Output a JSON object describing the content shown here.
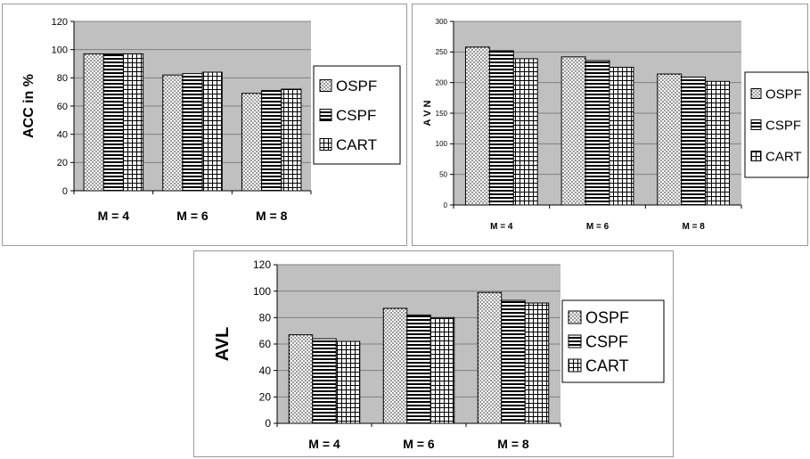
{
  "chart_data": [
    {
      "type": "bar",
      "ylabel": "ACC in %",
      "xlabel": "",
      "categories": [
        "M = 4",
        "M = 6",
        "M = 8"
      ],
      "ylim": [
        0,
        120
      ],
      "yticks": [
        0,
        20,
        40,
        60,
        80,
        100,
        120
      ],
      "grid": true,
      "legend": "right",
      "series": [
        {
          "name": "OSPF",
          "pattern": "dots",
          "values": [
            97,
            82,
            69
          ]
        },
        {
          "name": "CSPF",
          "pattern": "hstripes",
          "values": [
            97,
            83,
            71
          ]
        },
        {
          "name": "CART",
          "pattern": "grid",
          "values": [
            97,
            84,
            72
          ]
        }
      ]
    },
    {
      "type": "bar",
      "ylabel": "A V N",
      "xlabel": "",
      "categories": [
        "M = 4",
        "M = 6",
        "M = 8"
      ],
      "ylim": [
        0,
        300
      ],
      "yticks": [
        0,
        50,
        100,
        150,
        200,
        250,
        300
      ],
      "grid": true,
      "legend": "right",
      "series": [
        {
          "name": "OSPF",
          "pattern": "dots",
          "values": [
            258,
            242,
            214
          ]
        },
        {
          "name": "CSPF",
          "pattern": "hstripes",
          "values": [
            252,
            236,
            209
          ]
        },
        {
          "name": "CART",
          "pattern": "grid",
          "values": [
            239,
            225,
            202
          ]
        }
      ]
    },
    {
      "type": "bar",
      "ylabel": "AVL",
      "xlabel": "",
      "categories": [
        "M = 4",
        "M = 6",
        "M = 8"
      ],
      "ylim": [
        0,
        120
      ],
      "yticks": [
        0,
        20,
        40,
        60,
        80,
        100,
        120
      ],
      "grid": true,
      "legend": "right",
      "series": [
        {
          "name": "OSPF",
          "pattern": "dots",
          "values": [
            67,
            87,
            99
          ]
        },
        {
          "name": "CSPF",
          "pattern": "hstripes",
          "values": [
            64,
            82,
            93
          ]
        },
        {
          "name": "CART",
          "pattern": "grid",
          "values": [
            62,
            80,
            91
          ]
        }
      ]
    }
  ],
  "colors": {
    "plot_background": "#c0c0c0",
    "bar_fill": "#ffffff",
    "bar_stroke": "#000000",
    "gridline": "#808080"
  }
}
